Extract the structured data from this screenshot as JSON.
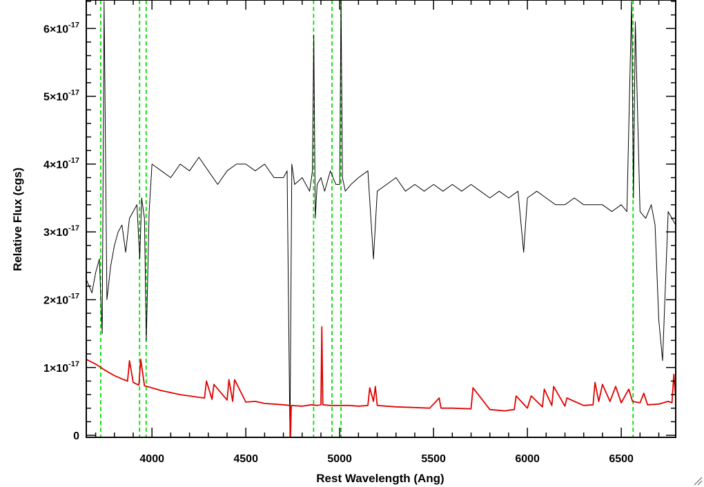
{
  "chart_data": {
    "type": "line",
    "title": "",
    "xlabel": "Rest Wavelength (Ang)",
    "ylabel": "Relative Flux (cgs)",
    "xlim": [
      3650,
      6790
    ],
    "ylim": [
      -3e-19,
      6.42e-17
    ],
    "x_ticks": [
      {
        "value": 4000,
        "label": "4000"
      },
      {
        "value": 4500,
        "label": "4500"
      },
      {
        "value": 5000,
        "label": "5000"
      },
      {
        "value": 5500,
        "label": "5500"
      },
      {
        "value": 6000,
        "label": "6000"
      },
      {
        "value": 6500,
        "label": "6500"
      }
    ],
    "y_ticks": [
      {
        "value": 0,
        "mantissa": "0",
        "exponent": ""
      },
      {
        "value": 1e-17,
        "mantissa": "1×10",
        "exponent": "-17"
      },
      {
        "value": 2e-17,
        "mantissa": "2×10",
        "exponent": "-17"
      },
      {
        "value": 3e-17,
        "mantissa": "3×10",
        "exponent": "-17"
      },
      {
        "value": 4e-17,
        "mantissa": "4×10",
        "exponent": "-17"
      },
      {
        "value": 5e-17,
        "mantissa": "5×10",
        "exponent": "-17"
      },
      {
        "value": 6e-17,
        "mantissa": "6×10",
        "exponent": "-17"
      }
    ],
    "grid": false,
    "legend": "none",
    "series": [
      {
        "role": "spectrum",
        "color": "#000000",
        "x": [
          3650,
          3680,
          3700,
          3720,
          3735,
          3745,
          3760,
          3780,
          3800,
          3820,
          3840,
          3860,
          3880,
          3900,
          3920,
          3935,
          3945,
          3960,
          3970,
          3985,
          4000,
          4050,
          4100,
          4150,
          4200,
          4250,
          4300,
          4350,
          4400,
          4450,
          4500,
          4550,
          4600,
          4650,
          4700,
          4720,
          4735,
          4745,
          4760,
          4800,
          4840,
          4855,
          4862,
          4870,
          4880,
          4900,
          4920,
          4950,
          4980,
          5000,
          5007,
          5015,
          5030,
          5060,
          5100,
          5150,
          5180,
          5200,
          5250,
          5300,
          5350,
          5400,
          5450,
          5500,
          5550,
          5600,
          5650,
          5700,
          5750,
          5800,
          5850,
          5900,
          5950,
          5980,
          6000,
          6050,
          6100,
          6150,
          6200,
          6250,
          6300,
          6350,
          6400,
          6450,
          6500,
          6530,
          6555,
          6565,
          6575,
          6600,
          6630,
          6660,
          6680,
          6700,
          6720,
          6750,
          6790
        ],
        "y": [
          2.3e-17,
          2.1e-17,
          2.4e-17,
          2.6e-17,
          1.5e-17,
          6.4e-17,
          2e-17,
          2.5e-17,
          2.8e-17,
          3e-17,
          3.1e-17,
          2.7e-17,
          3.2e-17,
          3.3e-17,
          3.4e-17,
          2.6e-17,
          3.5e-17,
          3.2e-17,
          1.4e-17,
          3.3e-17,
          4e-17,
          3.9e-17,
          3.8e-17,
          4e-17,
          3.9e-17,
          4.1e-17,
          3.9e-17,
          3.7e-17,
          3.9e-17,
          4e-17,
          4e-17,
          3.9e-17,
          4e-17,
          3.8e-17,
          3.8e-17,
          3.9e-17,
          -3e-19,
          4e-17,
          3.7e-17,
          3.8e-17,
          3.6e-17,
          3.9e-17,
          5.9e-17,
          3.2e-17,
          3.7e-17,
          3.8e-17,
          3.6e-17,
          3.9e-17,
          3.7e-17,
          3.7e-17,
          6.42e-17,
          3.8e-17,
          3.6e-17,
          3.7e-17,
          3.8e-17,
          3.9e-17,
          2.6e-17,
          3.6e-17,
          3.7e-17,
          3.8e-17,
          3.6e-17,
          3.7e-17,
          3.6e-17,
          3.7e-17,
          3.6e-17,
          3.7e-17,
          3.6e-17,
          3.7e-17,
          3.6e-17,
          3.5e-17,
          3.6e-17,
          3.5e-17,
          3.6e-17,
          2.7e-17,
          3.5e-17,
          3.6e-17,
          3.5e-17,
          3.4e-17,
          3.4e-17,
          3.5e-17,
          3.4e-17,
          3.4e-17,
          3.4e-17,
          3.3e-17,
          3.4e-17,
          3.3e-17,
          6.4e-17,
          3.5e-17,
          6.1e-17,
          3.3e-17,
          3.2e-17,
          3.4e-17,
          3.1e-17,
          1.7e-17,
          1.1e-17,
          3.3e-17,
          3.1e-17
        ]
      },
      {
        "role": "model",
        "color": "#e00000",
        "x": [
          3650,
          3700,
          3750,
          3800,
          3850,
          3870,
          3880,
          3900,
          3930,
          3940,
          3960,
          4000,
          4050,
          4100,
          4150,
          4200,
          4250,
          4280,
          4290,
          4320,
          4330,
          4400,
          4410,
          4430,
          4440,
          4500,
          4550,
          4600,
          4650,
          4700,
          4734,
          4738,
          4742,
          4800,
          4850,
          4880,
          4900,
          4905,
          4910,
          4950,
          5000,
          5050,
          5100,
          5150,
          5160,
          5180,
          5190,
          5200,
          5300,
          5400,
          5480,
          5530,
          5540,
          5600,
          5700,
          5710,
          5800,
          5880,
          5900,
          5930,
          5940,
          6000,
          6020,
          6080,
          6090,
          6130,
          6140,
          6200,
          6210,
          6300,
          6350,
          6360,
          6380,
          6400,
          6440,
          6470,
          6500,
          6540,
          6560,
          6600,
          6620,
          6640,
          6700,
          6750,
          6770,
          6780,
          6790
        ],
        "y": [
          1.12e-17,
          1.05e-17,
          9.6e-18,
          8.8e-18,
          8.2e-18,
          8e-18,
          1.1e-17,
          7.8e-18,
          7.4e-18,
          1.12e-17,
          7.3e-18,
          7e-18,
          6.6e-18,
          6.3e-18,
          6e-18,
          5.8e-18,
          5.6e-18,
          5.5e-18,
          8e-18,
          5.3e-18,
          7.5e-18,
          5.2e-18,
          8.2e-18,
          5e-18,
          8.2e-18,
          4.9e-18,
          5e-18,
          4.7e-18,
          4.6e-18,
          4.5e-18,
          4.4e-18,
          -3e-19,
          4.4e-18,
          4.3e-18,
          4.5e-18,
          4.4e-18,
          4.5e-18,
          1.6e-17,
          4.5e-18,
          4.4e-18,
          4.4e-18,
          4.4e-18,
          4.3e-18,
          4.4e-18,
          7e-18,
          5e-18,
          7.2e-18,
          4.4e-18,
          4.2e-18,
          4.1e-18,
          4e-18,
          5.5e-18,
          4e-18,
          4e-18,
          3.9e-18,
          7e-18,
          3.8e-18,
          3.6e-18,
          3.7e-18,
          3.8e-18,
          5.8e-18,
          4e-18,
          5.8e-18,
          4.2e-18,
          6.8e-18,
          4.4e-18,
          7.2e-18,
          4.3e-18,
          5.5e-18,
          4.4e-18,
          4.5e-18,
          7.8e-18,
          5e-18,
          7.5e-18,
          5e-18,
          7.2e-18,
          4.8e-18,
          6.8e-18,
          5e-18,
          4.8e-18,
          6.2e-18,
          4.5e-18,
          4.6e-18,
          5e-18,
          4.8e-18,
          9e-18,
          5.5e-18
        ]
      }
    ],
    "reference_lines": {
      "color": "#00e000",
      "style": "dashed",
      "x": [
        3727,
        3934,
        3969,
        4861,
        4959,
        5007,
        6563
      ]
    }
  }
}
